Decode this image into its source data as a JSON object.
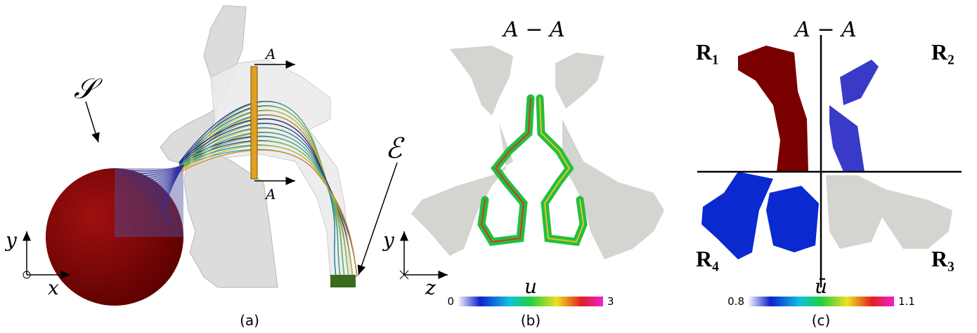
{
  "panels": [
    {
      "caption": "(a)",
      "sphere_label": "𝒮",
      "exit_label": "ℰ",
      "section_top": "A",
      "section_bottom": "A",
      "axis_y": "y",
      "axis_x": "x"
    },
    {
      "caption": "(b)",
      "title": "A − A",
      "axis_y": "y",
      "axis_z": "z",
      "colorbar": {
        "label": "u",
        "min": 0,
        "max": 3
      }
    },
    {
      "caption": "(c)",
      "title": "A − A",
      "regions": [
        "R₁",
        "R₂",
        "R₃",
        "R₄"
      ],
      "colorbar": {
        "label": "ū",
        "min": 0.8,
        "max": 1.1
      }
    }
  ]
}
